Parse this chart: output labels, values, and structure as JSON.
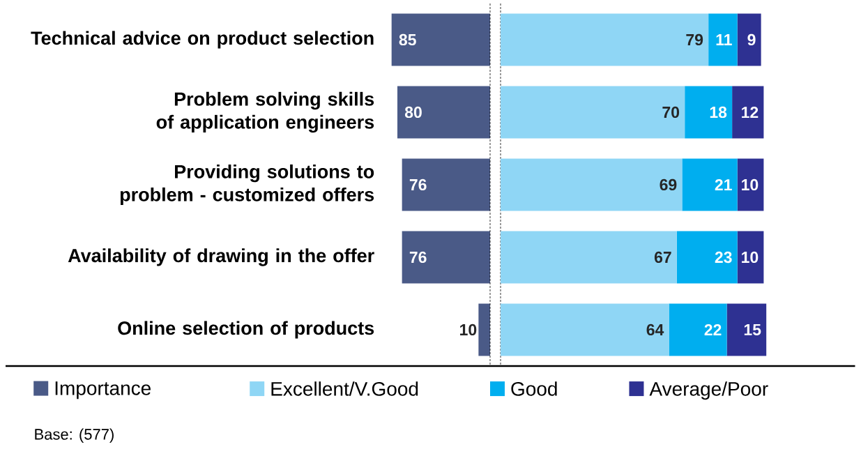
{
  "chart_data": [
    {
      "type": "bar",
      "orientation": "horizontal",
      "categories": [
        "Technical advice on product selection",
        "Problem solving skills of application engineers",
        "Providing solutions to problem - customized offers",
        "Availability of drawing in the offer",
        "Online selection of products"
      ],
      "series": [
        {
          "name": "Importance",
          "color": "#4a5a87",
          "values": [
            85,
            80,
            76,
            76,
            10
          ]
        }
      ],
      "data_labels": true,
      "tick_labels": "y",
      "legend": "bottom",
      "ref_lines": [
        {
          "axis": "x",
          "value": 0,
          "line_style": "dashed"
        }
      ],
      "annotations": [
        "Base: (577)"
      ]
    },
    {
      "type": "bar",
      "orientation": "horizontal",
      "stacked": true,
      "categories": [
        null,
        null,
        null,
        null,
        null
      ],
      "series": [
        {
          "name": "Excellent/V.Good",
          "color": "#8fd6f5",
          "values": [
            79,
            70,
            69,
            67,
            64
          ]
        },
        {
          "name": "Good",
          "color": "#00aeef",
          "values": [
            11,
            18,
            21,
            23,
            22
          ]
        },
        {
          "name": "Average/Poor",
          "color": "#2e3192",
          "values": [
            9,
            12,
            10,
            10,
            15
          ]
        }
      ],
      "data_labels": true,
      "tick_labels": false,
      "legend": "bottom",
      "ref_lines": [
        {
          "axis": "x",
          "value": 0,
          "line_style": "dashed"
        }
      ]
    }
  ]
}
